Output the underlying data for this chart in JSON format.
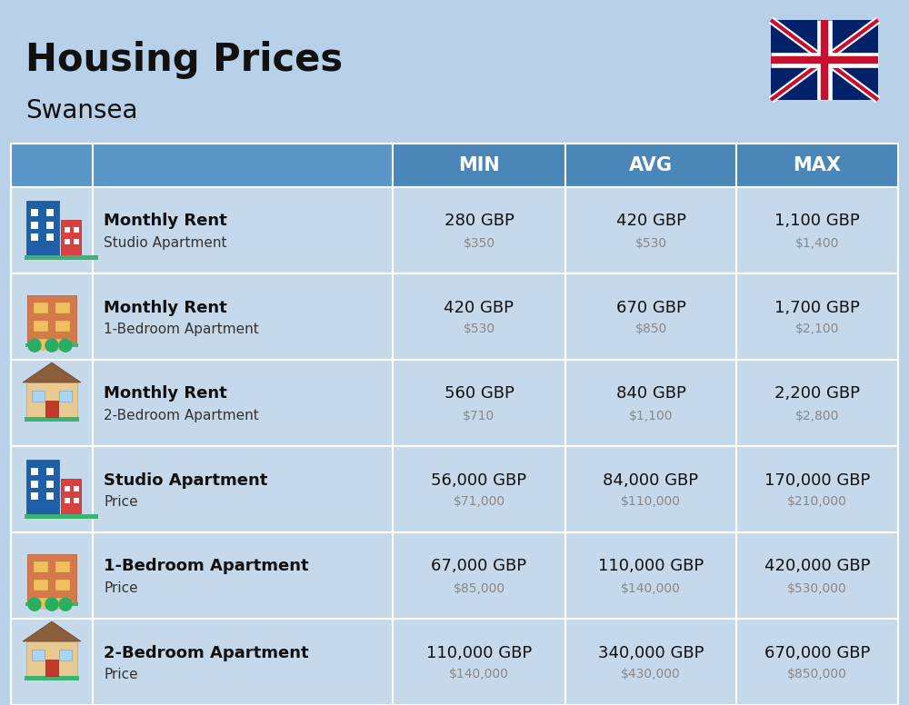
{
  "title": "Housing Prices",
  "subtitle": "Swansea",
  "background_color": "#b8d0e8",
  "header_color": "#4a86b8",
  "header_text_color": "#ffffff",
  "row_bg_color": "#c5d9ea",
  "separator_color": "#ffffff",
  "col_headers": [
    "MIN",
    "AVG",
    "MAX"
  ],
  "rows": [
    {
      "icon_type": "studio_blue",
      "bold_label": "Monthly Rent",
      "sub_label": "Studio Apartment",
      "min_gbp": "280 GBP",
      "min_usd": "$350",
      "avg_gbp": "420 GBP",
      "avg_usd": "$530",
      "max_gbp": "1,100 GBP",
      "max_usd": "$1,400"
    },
    {
      "icon_type": "apartment_orange",
      "bold_label": "Monthly Rent",
      "sub_label": "1-Bedroom Apartment",
      "min_gbp": "420 GBP",
      "min_usd": "$530",
      "avg_gbp": "670 GBP",
      "avg_usd": "$850",
      "max_gbp": "1,700 GBP",
      "max_usd": "$2,100"
    },
    {
      "icon_type": "house_beige",
      "bold_label": "Monthly Rent",
      "sub_label": "2-Bedroom Apartment",
      "min_gbp": "560 GBP",
      "min_usd": "$710",
      "avg_gbp": "840 GBP",
      "avg_usd": "$1,100",
      "max_gbp": "2,200 GBP",
      "max_usd": "$2,800"
    },
    {
      "icon_type": "studio_blue",
      "bold_label": "Studio Apartment",
      "sub_label": "Price",
      "min_gbp": "56,000 GBP",
      "min_usd": "$71,000",
      "avg_gbp": "84,000 GBP",
      "avg_usd": "$110,000",
      "max_gbp": "170,000 GBP",
      "max_usd": "$210,000"
    },
    {
      "icon_type": "apartment_orange",
      "bold_label": "1-Bedroom Apartment",
      "sub_label": "Price",
      "min_gbp": "67,000 GBP",
      "min_usd": "$85,000",
      "avg_gbp": "110,000 GBP",
      "avg_usd": "$140,000",
      "max_gbp": "420,000 GBP",
      "max_usd": "$530,000"
    },
    {
      "icon_type": "house_beige",
      "bold_label": "2-Bedroom Apartment",
      "sub_label": "Price",
      "min_gbp": "110,000 GBP",
      "min_usd": "$140,000",
      "avg_gbp": "340,000 GBP",
      "avg_usd": "$430,000",
      "max_gbp": "670,000 GBP",
      "max_usd": "$850,000"
    }
  ],
  "fig_width": 10.0,
  "fig_height": 7.76,
  "dpi": 100
}
